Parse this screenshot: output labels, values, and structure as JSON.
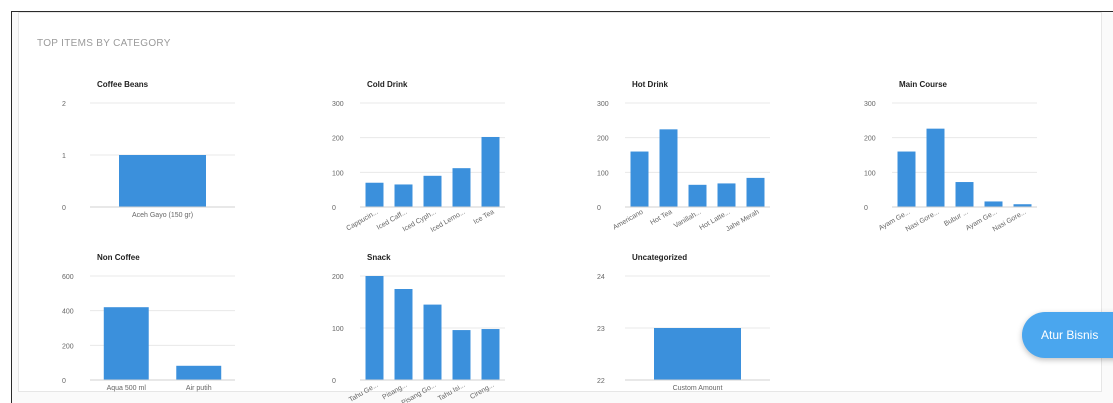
{
  "section_title": "TOP ITEMS BY CATEGORY",
  "colors": {
    "bar": "#3b90dc",
    "grid": "#e8e8e8",
    "axis_text": "#666666",
    "title": "#222222"
  },
  "fab_label": "Atur Bisnis",
  "chart_data": [
    {
      "type": "bar",
      "title": "Coffee Beans",
      "categories": [
        "Aceh Gayo (150 gr)"
      ],
      "values": [
        1
      ],
      "ylim": [
        0,
        2
      ],
      "yticks": [
        0,
        1,
        2
      ],
      "rotate_labels": false,
      "grid": true
    },
    {
      "type": "bar",
      "title": "Cold Drink",
      "categories": [
        "Cappucin...",
        "Iced Caff...",
        "Iced Cyph...",
        "Iced Lemo...",
        "Ice Tea"
      ],
      "values": [
        70,
        65,
        90,
        112,
        202
      ],
      "ylim": [
        0,
        300
      ],
      "yticks": [
        0,
        100,
        200,
        300
      ],
      "rotate_labels": true,
      "grid": true
    },
    {
      "type": "bar",
      "title": "Hot Drink",
      "categories": [
        "Americano",
        "Hot Tea",
        "Vanillah...",
        "Hot Latte...",
        "Jahe Merah"
      ],
      "values": [
        160,
        224,
        64,
        68,
        84
      ],
      "ylim": [
        0,
        300
      ],
      "yticks": [
        0,
        100,
        200,
        300
      ],
      "rotate_labels": true,
      "grid": true
    },
    {
      "type": "bar",
      "title": "Main Course",
      "categories": [
        "Ayam Ge...",
        "Nasi Gore...",
        "Bubur ...",
        "Ayam Ge...",
        "Nasi Gore..."
      ],
      "values": [
        160,
        226,
        72,
        16,
        8
      ],
      "ylim": [
        0,
        300
      ],
      "yticks": [
        0,
        100,
        200,
        300
      ],
      "rotate_labels": true,
      "grid": true
    },
    {
      "type": "bar",
      "title": "Non Coffee",
      "categories": [
        "Aqua 500 ml",
        "Air putih"
      ],
      "values": [
        420,
        82
      ],
      "ylim": [
        0,
        600
      ],
      "yticks": [
        0,
        200,
        400,
        600
      ],
      "rotate_labels": false,
      "grid": true
    },
    {
      "type": "bar",
      "title": "Snack",
      "categories": [
        "Tahu Ge...",
        "Pisang...",
        "Pisang Go...",
        "Tahu Isi...",
        "Cireng..."
      ],
      "values": [
        200,
        175,
        145,
        96,
        98
      ],
      "ylim": [
        0,
        200
      ],
      "yticks": [
        0,
        100,
        200
      ],
      "rotate_labels": true,
      "grid": true
    },
    {
      "type": "bar",
      "title": "Uncategorized",
      "categories": [
        "Custom Amount"
      ],
      "values": [
        23
      ],
      "ylim": [
        22,
        24
      ],
      "yticks": [
        22,
        23,
        24
      ],
      "rotate_labels": false,
      "grid": true
    }
  ]
}
